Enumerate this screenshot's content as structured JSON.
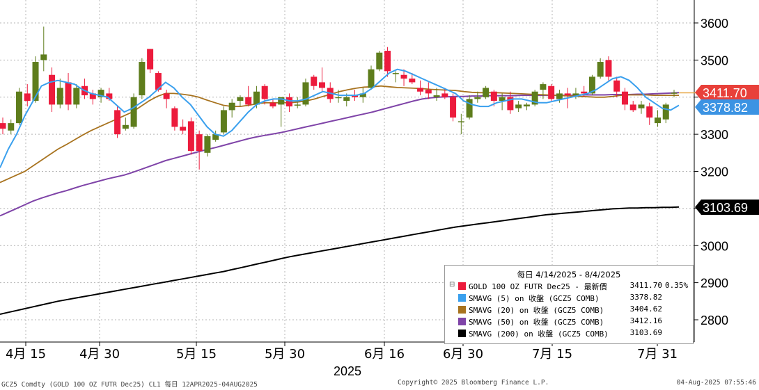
{
  "chart_data": {
    "type": "candlestick",
    "x_axis_labels": [
      "4月 15",
      "4月 30",
      "5月 15",
      "5月 30",
      "6月 16",
      "6月 30",
      "7月 15",
      "7月 31"
    ],
    "x_axis_year": "2025",
    "y_ticks": [
      2800,
      2900,
      3000,
      3100,
      3200,
      3300,
      3400,
      3500,
      3600
    ],
    "ylim": [
      2730,
      3680
    ],
    "candles": [
      {
        "o": 3330,
        "h": 3345,
        "l": 3300,
        "c": 3315
      },
      {
        "o": 3310,
        "h": 3340,
        "l": 3300,
        "c": 3330
      },
      {
        "o": 3330,
        "h": 3425,
        "l": 3325,
        "c": 3415
      },
      {
        "o": 3410,
        "h": 3435,
        "l": 3375,
        "c": 3390
      },
      {
        "o": 3390,
        "h": 3510,
        "l": 3385,
        "c": 3495
      },
      {
        "o": 3500,
        "h": 3590,
        "l": 3470,
        "c": 3515
      },
      {
        "o": 3460,
        "h": 3480,
        "l": 3360,
        "c": 3380
      },
      {
        "o": 3380,
        "h": 3450,
        "l": 3370,
        "c": 3425
      },
      {
        "o": 3440,
        "h": 3465,
        "l": 3365,
        "c": 3380
      },
      {
        "o": 3380,
        "h": 3435,
        "l": 3370,
        "c": 3425
      },
      {
        "o": 3430,
        "h": 3450,
        "l": 3395,
        "c": 3405
      },
      {
        "o": 3410,
        "h": 3420,
        "l": 3380,
        "c": 3395
      },
      {
        "o": 3400,
        "h": 3425,
        "l": 3385,
        "c": 3420
      },
      {
        "o": 3410,
        "h": 3425,
        "l": 3390,
        "c": 3395
      },
      {
        "o": 3365,
        "h": 3375,
        "l": 3290,
        "c": 3300
      },
      {
        "o": 3315,
        "h": 3345,
        "l": 3310,
        "c": 3325
      },
      {
        "o": 3320,
        "h": 3410,
        "l": 3315,
        "c": 3400
      },
      {
        "o": 3405,
        "h": 3505,
        "l": 3395,
        "c": 3495
      },
      {
        "o": 3530,
        "h": 3530,
        "l": 3465,
        "c": 3475
      },
      {
        "o": 3465,
        "h": 3470,
        "l": 3415,
        "c": 3420
      },
      {
        "o": 3410,
        "h": 3420,
        "l": 3370,
        "c": 3395
      },
      {
        "o": 3370,
        "h": 3375,
        "l": 3310,
        "c": 3320
      },
      {
        "o": 3320,
        "h": 3340,
        "l": 3300,
        "c": 3310
      },
      {
        "o": 3335,
        "h": 3345,
        "l": 3245,
        "c": 3255
      },
      {
        "o": 3300,
        "h": 3310,
        "l": 3205,
        "c": 3255
      },
      {
        "o": 3250,
        "h": 3300,
        "l": 3240,
        "c": 3295
      },
      {
        "o": 3285,
        "h": 3310,
        "l": 3280,
        "c": 3300
      },
      {
        "o": 3305,
        "h": 3375,
        "l": 3300,
        "c": 3365
      },
      {
        "o": 3365,
        "h": 3395,
        "l": 3345,
        "c": 3385
      },
      {
        "o": 3390,
        "h": 3405,
        "l": 3375,
        "c": 3400
      },
      {
        "o": 3400,
        "h": 3430,
        "l": 3375,
        "c": 3380
      },
      {
        "o": 3380,
        "h": 3430,
        "l": 3370,
        "c": 3415
      },
      {
        "o": 3430,
        "h": 3435,
        "l": 3380,
        "c": 3395
      },
      {
        "o": 3385,
        "h": 3395,
        "l": 3370,
        "c": 3375
      },
      {
        "o": 3380,
        "h": 3395,
        "l": 3320,
        "c": 3400
      },
      {
        "o": 3400,
        "h": 3410,
        "l": 3360,
        "c": 3375
      },
      {
        "o": 3380,
        "h": 3400,
        "l": 3370,
        "c": 3380
      },
      {
        "o": 3380,
        "h": 3450,
        "l": 3375,
        "c": 3440
      },
      {
        "o": 3455,
        "h": 3460,
        "l": 3420,
        "c": 3430
      },
      {
        "o": 3440,
        "h": 3480,
        "l": 3415,
        "c": 3425
      },
      {
        "o": 3425,
        "h": 3440,
        "l": 3385,
        "c": 3395
      },
      {
        "o": 3400,
        "h": 3420,
        "l": 3385,
        "c": 3400
      },
      {
        "o": 3390,
        "h": 3410,
        "l": 3375,
        "c": 3400
      },
      {
        "o": 3405,
        "h": 3420,
        "l": 3390,
        "c": 3400
      },
      {
        "o": 3400,
        "h": 3425,
        "l": 3385,
        "c": 3410
      },
      {
        "o": 3425,
        "h": 3485,
        "l": 3420,
        "c": 3475
      },
      {
        "o": 3475,
        "h": 3525,
        "l": 3470,
        "c": 3520
      },
      {
        "o": 3525,
        "h": 3535,
        "l": 3455,
        "c": 3470
      },
      {
        "o": 3465,
        "h": 3470,
        "l": 3440,
        "c": 3465
      },
      {
        "o": 3460,
        "h": 3475,
        "l": 3430,
        "c": 3450
      },
      {
        "o": 3450,
        "h": 3465,
        "l": 3435,
        "c": 3440
      },
      {
        "o": 3425,
        "h": 3445,
        "l": 3405,
        "c": 3415
      },
      {
        "o": 3420,
        "h": 3440,
        "l": 3395,
        "c": 3410
      },
      {
        "o": 3400,
        "h": 3425,
        "l": 3390,
        "c": 3405
      },
      {
        "o": 3410,
        "h": 3425,
        "l": 3395,
        "c": 3400
      },
      {
        "o": 3400,
        "h": 3410,
        "l": 3335,
        "c": 3345
      },
      {
        "o": 3335,
        "h": 3355,
        "l": 3300,
        "c": 3335
      },
      {
        "o": 3345,
        "h": 3405,
        "l": 3340,
        "c": 3395
      },
      {
        "o": 3395,
        "h": 3415,
        "l": 3385,
        "c": 3400
      },
      {
        "o": 3400,
        "h": 3430,
        "l": 3395,
        "c": 3425
      },
      {
        "o": 3415,
        "h": 3420,
        "l": 3375,
        "c": 3390
      },
      {
        "o": 3390,
        "h": 3410,
        "l": 3365,
        "c": 3400
      },
      {
        "o": 3400,
        "h": 3415,
        "l": 3355,
        "c": 3365
      },
      {
        "o": 3370,
        "h": 3390,
        "l": 3360,
        "c": 3380
      },
      {
        "o": 3375,
        "h": 3385,
        "l": 3365,
        "c": 3380
      },
      {
        "o": 3380,
        "h": 3420,
        "l": 3375,
        "c": 3415
      },
      {
        "o": 3420,
        "h": 3440,
        "l": 3395,
        "c": 3435
      },
      {
        "o": 3430,
        "h": 3435,
        "l": 3390,
        "c": 3395
      },
      {
        "o": 3395,
        "h": 3420,
        "l": 3385,
        "c": 3410
      },
      {
        "o": 3410,
        "h": 3425,
        "l": 3370,
        "c": 3405
      },
      {
        "o": 3405,
        "h": 3425,
        "l": 3395,
        "c": 3410
      },
      {
        "o": 3415,
        "h": 3430,
        "l": 3400,
        "c": 3410
      },
      {
        "o": 3410,
        "h": 3460,
        "l": 3405,
        "c": 3455
      },
      {
        "o": 3455,
        "h": 3505,
        "l": 3450,
        "c": 3495
      },
      {
        "o": 3500,
        "h": 3510,
        "l": 3445,
        "c": 3455
      },
      {
        "o": 3445,
        "h": 3455,
        "l": 3400,
        "c": 3415
      },
      {
        "o": 3415,
        "h": 3425,
        "l": 3365,
        "c": 3380
      },
      {
        "o": 3380,
        "h": 3390,
        "l": 3360,
        "c": 3365
      },
      {
        "o": 3370,
        "h": 3390,
        "l": 3355,
        "c": 3380
      },
      {
        "o": 3375,
        "h": 3385,
        "l": 3325,
        "c": 3345
      },
      {
        "o": 3330,
        "h": 3365,
        "l": 3320,
        "c": 3345
      },
      {
        "o": 3340,
        "h": 3385,
        "l": 3330,
        "c": 3380
      },
      {
        "o": 3410,
        "h": 3420,
        "l": 3400,
        "c": 3412
      }
    ],
    "sma5": [
      3210,
      3260,
      3300,
      3350,
      3390,
      3430,
      3440,
      3445,
      3440,
      3435,
      3420,
      3410,
      3405,
      3400,
      3380,
      3360,
      3370,
      3385,
      3400,
      3420,
      3440,
      3425,
      3400,
      3380,
      3350,
      3320,
      3300,
      3295,
      3310,
      3335,
      3360,
      3380,
      3390,
      3395,
      3395,
      3390,
      3390,
      3395,
      3405,
      3415,
      3410,
      3405,
      3405,
      3405,
      3410,
      3425,
      3445,
      3465,
      3475,
      3470,
      3460,
      3450,
      3440,
      3430,
      3420,
      3410,
      3390,
      3380,
      3375,
      3375,
      3385,
      3390,
      3395,
      3395,
      3390,
      3385,
      3385,
      3390,
      3395,
      3400,
      3405,
      3410,
      3420,
      3435,
      3450,
      3455,
      3445,
      3425,
      3400,
      3385,
      3370,
      3365,
      3378
    ],
    "sma20": [
      3170,
      3180,
      3190,
      3200,
      3215,
      3230,
      3245,
      3260,
      3272,
      3285,
      3298,
      3310,
      3320,
      3330,
      3340,
      3350,
      3360,
      3375,
      3390,
      3402,
      3410,
      3410,
      3408,
      3405,
      3400,
      3392,
      3385,
      3378,
      3375,
      3375,
      3378,
      3382,
      3385,
      3385,
      3385,
      3385,
      3387,
      3390,
      3395,
      3402,
      3408,
      3415,
      3420,
      3424,
      3427,
      3428,
      3430,
      3428,
      3426,
      3425,
      3424,
      3423,
      3421,
      3420,
      3419,
      3418,
      3415,
      3413,
      3412,
      3412,
      3412,
      3411,
      3410,
      3409,
      3408,
      3407,
      3406,
      3405,
      3404,
      3403,
      3402,
      3401,
      3400,
      3400,
      3402,
      3405,
      3406,
      3406,
      3406,
      3405,
      3405,
      3405,
      3405
    ],
    "sma50": [
      3080,
      3090,
      3100,
      3110,
      3120,
      3128,
      3135,
      3142,
      3148,
      3155,
      3162,
      3168,
      3174,
      3180,
      3185,
      3190,
      3197,
      3205,
      3213,
      3221,
      3229,
      3235,
      3241,
      3247,
      3253,
      3259,
      3264,
      3270,
      3276,
      3282,
      3288,
      3293,
      3297,
      3301,
      3305,
      3310,
      3315,
      3320,
      3325,
      3330,
      3335,
      3340,
      3345,
      3350,
      3355,
      3360,
      3366,
      3372,
      3378,
      3384,
      3390,
      3395,
      3398,
      3400,
      3401,
      3402,
      3402,
      3403,
      3403,
      3404,
      3404,
      3404,
      3404,
      3405,
      3405,
      3405,
      3405,
      3405,
      3405,
      3405,
      3406,
      3406,
      3406,
      3406,
      3407,
      3407,
      3407,
      3408,
      3408,
      3409,
      3410,
      3411,
      3412
    ],
    "sma200": [
      2815,
      2820,
      2825,
      2830,
      2835,
      2840,
      2845,
      2850,
      2854,
      2858,
      2862,
      2866,
      2870,
      2874,
      2878,
      2882,
      2886,
      2890,
      2894,
      2898,
      2902,
      2906,
      2910,
      2914,
      2918,
      2922,
      2926,
      2930,
      2935,
      2940,
      2945,
      2950,
      2955,
      2960,
      2965,
      2970,
      2974,
      2978,
      2982,
      2986,
      2990,
      2994,
      2998,
      3002,
      3006,
      3010,
      3014,
      3018,
      3022,
      3026,
      3030,
      3034,
      3038,
      3042,
      3046,
      3050,
      3053,
      3056,
      3059,
      3062,
      3065,
      3068,
      3071,
      3074,
      3077,
      3080,
      3083,
      3085,
      3087,
      3089,
      3091,
      3093,
      3095,
      3097,
      3099,
      3100,
      3101,
      3101,
      3102,
      3102,
      3103,
      3103,
      3104
    ],
    "price_tags": [
      {
        "value": 3411.7,
        "text": "3411.70",
        "color": "#e8403a"
      },
      {
        "value": 3378.82,
        "text": "3378.82",
        "color": "#3b93e3"
      },
      {
        "value": 3103.69,
        "text": "3103.69",
        "color": "#000000"
      }
    ],
    "colors": {
      "up": "#5e7d1c",
      "down": "#ec1b3c",
      "sma5": "#3aa0ee",
      "sma20": "#a8731f",
      "sma50": "#7f44a8",
      "sma200": "#000000",
      "grid": "#b4b4b4"
    }
  },
  "legend": {
    "title": "每日 4/14/2025 - 8/4/2025",
    "rows": [
      {
        "marker": "⊟",
        "color": "#ec1b3c",
        "label": "GOLD 100 OZ FUTR Dec25 - 最新價",
        "value": "3411.70",
        "change": "0.35%"
      },
      {
        "marker": "",
        "color": "#3aa0ee",
        "label": "SMAVG (5)  on 收盤 (GCZ5 COMB)",
        "value": "3378.82",
        "change": ""
      },
      {
        "marker": "",
        "color": "#a8731f",
        "label": "SMAVG (20)  on 收盤 (GCZ5 COMB)",
        "value": "3404.62",
        "change": ""
      },
      {
        "marker": "",
        "color": "#7f44a8",
        "label": "SMAVG (50)  on 收盤 (GCZ5 COMB)",
        "value": "3412.16",
        "change": ""
      },
      {
        "marker": "",
        "color": "#000000",
        "label": "SMAVG (200)  on 收盤 (GCZ5 COMB)",
        "value": "3103.69",
        "change": ""
      }
    ]
  },
  "footer": {
    "left": "GCZ5 Comdty (GOLD 100 OZ FUTR  Dec25) CL1  每日 12APR2025-04AUG2025",
    "center": "Copyright© 2025 Bloomberg Finance L.P.",
    "right": "04-Aug-2025 07:55:46"
  }
}
